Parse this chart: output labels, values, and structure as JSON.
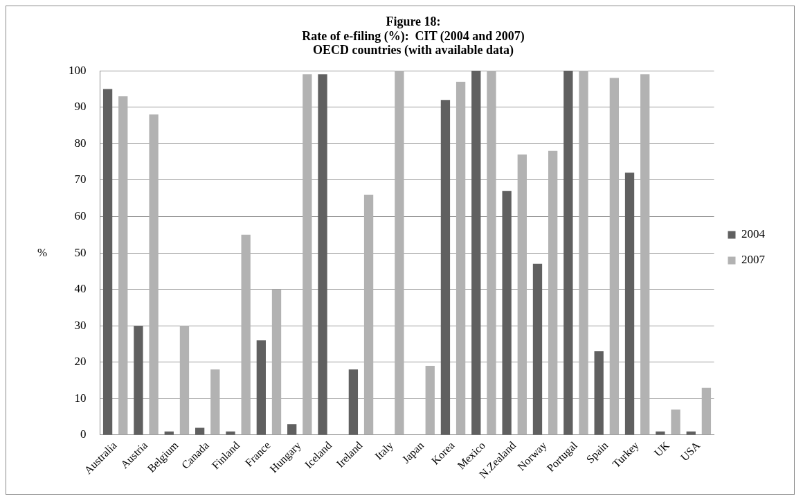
{
  "chart_data": {
    "type": "bar",
    "title": "Figure 18:\nRate of e-filing (%):  CIT (2004 and 2007)\nOECD countries (with available data)",
    "ylabel": "%",
    "categories": [
      "Australia",
      "Austria",
      "Belgium",
      "Canada",
      "Finland",
      "France",
      "Hungary",
      "Iceland",
      "Ireland",
      "Italy",
      "Japan",
      "Korea",
      "Mexico",
      "N.Zealand",
      "Norway",
      "Portugal",
      "Spain",
      "Turkey",
      "UK",
      "USA"
    ],
    "series": [
      {
        "name": "2004",
        "color": "#606060",
        "values": [
          95,
          30,
          1,
          2,
          1,
          26,
          3,
          99,
          18,
          null,
          null,
          92,
          100,
          67,
          47,
          100,
          23,
          72,
          1,
          1
        ]
      },
      {
        "name": "2007",
        "color": "#b2b2b2",
        "values": [
          93,
          88,
          30,
          18,
          55,
          40,
          99,
          null,
          66,
          100,
          19,
          97,
          100,
          77,
          78,
          100,
          98,
          99,
          7,
          13
        ]
      }
    ],
    "ylim": [
      0,
      100
    ],
    "yticks": [
      0,
      10,
      20,
      30,
      40,
      50,
      60,
      70,
      80,
      90,
      100
    ],
    "grid": "y",
    "legend": "right"
  }
}
